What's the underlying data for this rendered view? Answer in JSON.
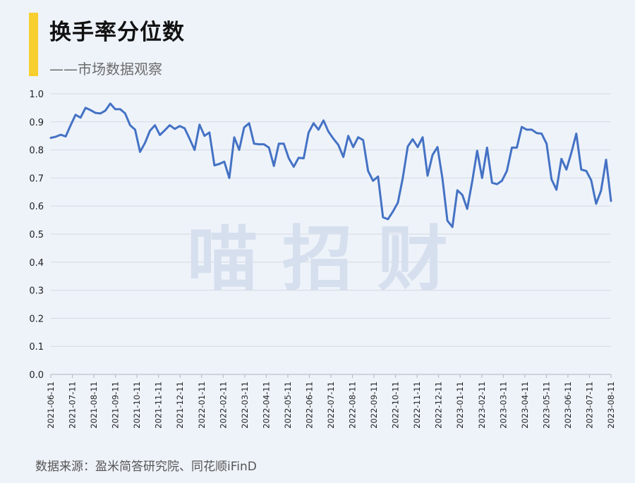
{
  "header": {
    "title": "换手率分位数",
    "subtitle": "——市场数据观察"
  },
  "watermark": "喵 招 财",
  "footer": {
    "source": "数据来源：盈米简答研究院、同花顺iFinD"
  },
  "colors": {
    "accent": "#f7cf2f",
    "line": "#4472c4",
    "background": "#eef3fa",
    "grid": "#d4d9e0"
  },
  "chart_data": {
    "type": "line",
    "title": "换手率分位数",
    "xlabel": "",
    "ylabel": "",
    "ylim": [
      0,
      1
    ],
    "yticks": [
      "0.0",
      "0.1",
      "0.2",
      "0.3",
      "0.4",
      "0.5",
      "0.6",
      "0.7",
      "0.8",
      "0.9",
      "1.0"
    ],
    "xticks": [
      "2021-06-11",
      "2021-07-11",
      "2021-08-11",
      "2021-09-11",
      "2021-10-11",
      "2021-11-11",
      "2021-12-11",
      "2022-01-11",
      "2022-02-11",
      "2022-03-11",
      "2022-04-11",
      "2022-05-11",
      "2022-06-11",
      "2022-07-11",
      "2022-08-11",
      "2022-09-11",
      "2022-10-11",
      "2022-11-11",
      "2022-12-11",
      "2023-01-11",
      "2023-02-11",
      "2023-03-11",
      "2023-04-11",
      "2023-05-11",
      "2023-06-11",
      "2023-07-11",
      "2023-08-11"
    ],
    "grid": true,
    "legend": "none",
    "series": [
      {
        "values": [
          0.843,
          0.847,
          0.854,
          0.848,
          0.888,
          0.925,
          0.915,
          0.95,
          0.942,
          0.932,
          0.93,
          0.94,
          0.965,
          0.945,
          0.945,
          0.93,
          0.888,
          0.872,
          0.793,
          0.825,
          0.868,
          0.888,
          0.853,
          0.87,
          0.888,
          0.875,
          0.885,
          0.877,
          0.84,
          0.8,
          0.89,
          0.85,
          0.862,
          0.745,
          0.75,
          0.758,
          0.7,
          0.845,
          0.8,
          0.88,
          0.895,
          0.822,
          0.82,
          0.82,
          0.808,
          0.743,
          0.822,
          0.822,
          0.77,
          0.74,
          0.772,
          0.77,
          0.862,
          0.895,
          0.872,
          0.905,
          0.865,
          0.84,
          0.818,
          0.775,
          0.85,
          0.81,
          0.845,
          0.835,
          0.725,
          0.69,
          0.705,
          0.56,
          0.553,
          0.58,
          0.612,
          0.7,
          0.812,
          0.838,
          0.81,
          0.845,
          0.708,
          0.782,
          0.81,
          0.698,
          0.548,
          0.525,
          0.656,
          0.64,
          0.59,
          0.688,
          0.797,
          0.7,
          0.808,
          0.683,
          0.678,
          0.69,
          0.725,
          0.808,
          0.808,
          0.882,
          0.872,
          0.872,
          0.86,
          0.858,
          0.822,
          0.695,
          0.658,
          0.768,
          0.73,
          0.79,
          0.858,
          0.73,
          0.725,
          0.692,
          0.608,
          0.655,
          0.765,
          0.618
        ]
      }
    ]
  }
}
